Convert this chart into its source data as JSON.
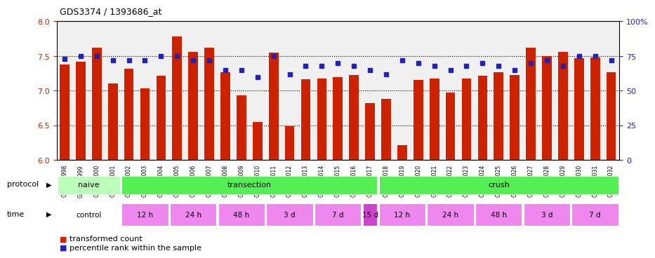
{
  "title": "GDS3374 / 1393686_at",
  "samples": [
    "GSM250998",
    "GSM250999",
    "GSM251000",
    "GSM251001",
    "GSM251002",
    "GSM251003",
    "GSM251004",
    "GSM251005",
    "GSM251006",
    "GSM251007",
    "GSM251008",
    "GSM251009",
    "GSM251010",
    "GSM251011",
    "GSM251012",
    "GSM251013",
    "GSM251014",
    "GSM251015",
    "GSM251016",
    "GSM251017",
    "GSM251018",
    "GSM251019",
    "GSM251020",
    "GSM251021",
    "GSM251022",
    "GSM251023",
    "GSM251024",
    "GSM251025",
    "GSM251026",
    "GSM251027",
    "GSM251028",
    "GSM251029",
    "GSM251030",
    "GSM251031",
    "GSM251032"
  ],
  "transformed_count": [
    7.38,
    7.42,
    7.62,
    7.1,
    7.32,
    7.03,
    7.22,
    7.78,
    7.56,
    7.62,
    7.27,
    6.93,
    6.55,
    7.55,
    6.49,
    7.17,
    7.18,
    7.2,
    7.23,
    6.82,
    6.88,
    6.21,
    7.15,
    7.18,
    6.97,
    7.18,
    7.22,
    7.27,
    7.23,
    7.62,
    7.5,
    7.56,
    7.47,
    7.48,
    7.27
  ],
  "percentile_rank": [
    73,
    75,
    75,
    72,
    72,
    72,
    75,
    75,
    72,
    72,
    65,
    65,
    60,
    75,
    62,
    68,
    68,
    70,
    68,
    65,
    62,
    72,
    70,
    68,
    65,
    68,
    70,
    68,
    65,
    70,
    72,
    68,
    75,
    75,
    72
  ],
  "ylim_left": [
    6.0,
    8.0
  ],
  "ylim_right": [
    0,
    100
  ],
  "yticks_left": [
    6.0,
    6.5,
    7.0,
    7.5,
    8.0
  ],
  "yticks_right": [
    0,
    25,
    50,
    75,
    100
  ],
  "ytick_right_labels": [
    "0",
    "25",
    "50",
    "75",
    "100%"
  ],
  "bar_color": "#cc2200",
  "dot_color": "#2222bb",
  "background_color": "#f0f0f0",
  "ytick_left_color": "#cc2200",
  "ytick_right_color": "#2222bb",
  "proto_groups": [
    {
      "label": "naive",
      "start": 0,
      "end": 4,
      "color": "#bbffbb"
    },
    {
      "label": "transection",
      "start": 4,
      "end": 20,
      "color": "#55ee55"
    },
    {
      "label": "crush",
      "start": 20,
      "end": 35,
      "color": "#55ee55"
    }
  ],
  "time_groups": [
    {
      "label": "control",
      "start": 0,
      "end": 4,
      "color": "#ffffff"
    },
    {
      "label": "12 h",
      "start": 4,
      "end": 7,
      "color": "#ee88ee"
    },
    {
      "label": "24 h",
      "start": 7,
      "end": 10,
      "color": "#ee88ee"
    },
    {
      "label": "48 h",
      "start": 10,
      "end": 13,
      "color": "#ee88ee"
    },
    {
      "label": "3 d",
      "start": 13,
      "end": 16,
      "color": "#ee88ee"
    },
    {
      "label": "7 d",
      "start": 16,
      "end": 19,
      "color": "#ee88ee"
    },
    {
      "label": "15 d",
      "start": 19,
      "end": 20,
      "color": "#cc44cc"
    },
    {
      "label": "12 h",
      "start": 20,
      "end": 23,
      "color": "#ee88ee"
    },
    {
      "label": "24 h",
      "start": 23,
      "end": 26,
      "color": "#ee88ee"
    },
    {
      "label": "48 h",
      "start": 26,
      "end": 29,
      "color": "#ee88ee"
    },
    {
      "label": "3 d",
      "start": 29,
      "end": 32,
      "color": "#ee88ee"
    },
    {
      "label": "7 d",
      "start": 32,
      "end": 35,
      "color": "#ee88ee"
    }
  ]
}
